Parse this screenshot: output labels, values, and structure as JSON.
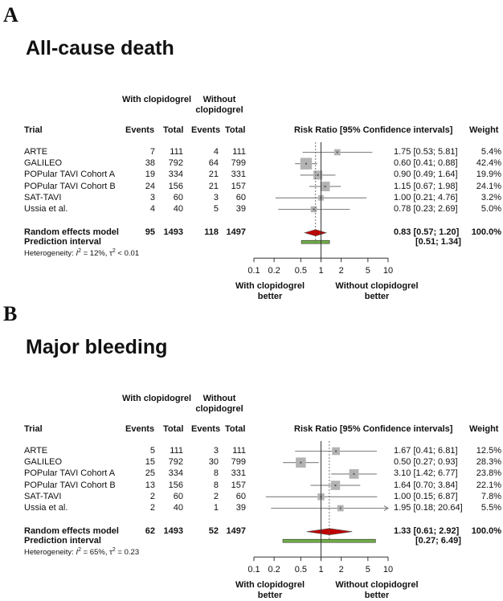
{
  "header": {
    "group1": "With clopidogrel",
    "group2": "Without clopidogrel",
    "trial": "Trial",
    "events": "Events",
    "total": "Total",
    "rr_header": "Risk Ratio [95% Confidence intervals]",
    "weight": "Weight"
  },
  "axis": {
    "ticks": [
      "0.1",
      "0.2",
      "0.5",
      "1",
      "2",
      "5",
      "10"
    ],
    "left_caption": [
      "With clopidogrel",
      "better"
    ],
    "right_caption": [
      "Without clopidogrel",
      "better"
    ]
  },
  "chart_data": [
    {
      "type": "forest",
      "panel": "A",
      "title": "All-cause death",
      "scale": "log",
      "xlim": [
        0.1,
        10
      ],
      "x_ticks": [
        0.1,
        0.2,
        0.5,
        1,
        2,
        5,
        10
      ],
      "studies": [
        {
          "name": "ARTE",
          "e1": "7",
          "n1": "111",
          "e2": "4",
          "n2": "111",
          "rr": 1.75,
          "lo": 0.53,
          "hi": 5.81,
          "ci_text": "1.75 [0.53; 5.81]",
          "weight": "5.4%",
          "w": 5.4
        },
        {
          "name": "GALILEO",
          "e1": "38",
          "n1": "792",
          "e2": "64",
          "n2": "799",
          "rr": 0.6,
          "lo": 0.41,
          "hi": 0.88,
          "ci_text": "0.60 [0.41; 0.88]",
          "weight": "42.4%",
          "w": 42.4
        },
        {
          "name": "POPular TAVI Cohort A",
          "e1": "19",
          "n1": "334",
          "e2": "21",
          "n2": "331",
          "rr": 0.9,
          "lo": 0.49,
          "hi": 1.64,
          "ci_text": "0.90 [0.49; 1.64]",
          "weight": "19.9%",
          "w": 19.9
        },
        {
          "name": "POPular TAVI Cohort B",
          "e1": "24",
          "n1": "156",
          "e2": "21",
          "n2": "157",
          "rr": 1.15,
          "lo": 0.67,
          "hi": 1.98,
          "ci_text": "1.15 [0.67; 1.98]",
          "weight": "24.1%",
          "w": 24.1
        },
        {
          "name": "SAT-TAVI",
          "e1": "3",
          "n1": "60",
          "e2": "3",
          "n2": "60",
          "rr": 1.0,
          "lo": 0.21,
          "hi": 4.76,
          "ci_text": "1.00 [0.21; 4.76]",
          "weight": "3.2%",
          "w": 3.2
        },
        {
          "name": "Ussia et al.",
          "e1": "4",
          "n1": "40",
          "e2": "5",
          "n2": "39",
          "rr": 0.78,
          "lo": 0.23,
          "hi": 2.69,
          "ci_text": "0.78 [0.23; 2.69]",
          "weight": "5.0%",
          "w": 5.0
        }
      ],
      "pooled": {
        "label": "Random effects model",
        "e1": "95",
        "n1": "1493",
        "e2": "118",
        "n2": "1497",
        "rr": 0.83,
        "lo": 0.57,
        "hi": 1.2,
        "ci_text": "0.83 [0.57; 1.20]",
        "weight": "100.0%"
      },
      "prediction": {
        "label": "Prediction interval",
        "lo": 0.51,
        "hi": 1.34,
        "ci_text": "[0.51; 1.34]"
      },
      "heterogeneity": {
        "prefix": "Heterogeneity: ",
        "i2": "I",
        "i2_sup": "2",
        "i2_val": " = 12%, ",
        "tau": "τ",
        "tau_sup": "2",
        "tau_val": " < 0.01"
      }
    },
    {
      "type": "forest",
      "panel": "B",
      "title": "Major bleeding",
      "scale": "log",
      "xlim": [
        0.1,
        10
      ],
      "x_ticks": [
        0.1,
        0.2,
        0.5,
        1,
        2,
        5,
        10
      ],
      "studies": [
        {
          "name": "ARTE",
          "e1": "5",
          "n1": "111",
          "e2": "3",
          "n2": "111",
          "rr": 1.67,
          "lo": 0.41,
          "hi": 6.81,
          "ci_text": "1.67 [0.41; 6.81]",
          "weight": "12.5%",
          "w": 12.5
        },
        {
          "name": "GALILEO",
          "e1": "15",
          "n1": "792",
          "e2": "30",
          "n2": "799",
          "rr": 0.5,
          "lo": 0.27,
          "hi": 0.93,
          "ci_text": "0.50 [0.27; 0.93]",
          "weight": "28.3%",
          "w": 28.3
        },
        {
          "name": "POPular TAVI Cohort A",
          "e1": "25",
          "n1": "334",
          "e2": "8",
          "n2": "331",
          "rr": 3.1,
          "lo": 1.42,
          "hi": 6.77,
          "ci_text": "3.10 [1.42; 6.77]",
          "weight": "23.8%",
          "w": 23.8
        },
        {
          "name": "POPular TAVI Cohort B",
          "e1": "13",
          "n1": "156",
          "e2": "8",
          "n2": "157",
          "rr": 1.64,
          "lo": 0.7,
          "hi": 3.84,
          "ci_text": "1.64 [0.70; 3.84]",
          "weight": "22.1%",
          "w": 22.1
        },
        {
          "name": "SAT-TAVI",
          "e1": "2",
          "n1": "60",
          "e2": "2",
          "n2": "60",
          "rr": 1.0,
          "lo": 0.15,
          "hi": 6.87,
          "ci_text": "1.00 [0.15; 6.87]",
          "weight": "7.8%",
          "w": 7.8
        },
        {
          "name": "Ussia et al.",
          "e1": "2",
          "n1": "40",
          "e2": "1",
          "n2": "39",
          "rr": 1.95,
          "lo": 0.18,
          "hi": 20.64,
          "ci_text": "1.95 [0.18; 20.64]",
          "weight": "5.5%",
          "w": 5.5
        }
      ],
      "pooled": {
        "label": "Random effects model",
        "e1": "62",
        "n1": "1493",
        "e2": "52",
        "n2": "1497",
        "rr": 1.33,
        "lo": 0.61,
        "hi": 2.92,
        "ci_text": "1.33 [0.61; 2.92]",
        "weight": "100.0%"
      },
      "prediction": {
        "label": "Prediction interval",
        "lo": 0.27,
        "hi": 6.49,
        "ci_text": "[0.27; 6.49]"
      },
      "heterogeneity": {
        "prefix": "Heterogeneity: ",
        "i2": "I",
        "i2_sup": "2",
        "i2_val": " = 65%, ",
        "tau": "τ",
        "tau_sup": "2",
        "tau_val": " = 0.23"
      }
    }
  ],
  "colors": {
    "square": "#b3b3b3",
    "ci_line": "#7f7f7f",
    "pooled_diamond": "#c00000",
    "prediction_bar": "#70ad47",
    "ref_line": "#333333"
  }
}
